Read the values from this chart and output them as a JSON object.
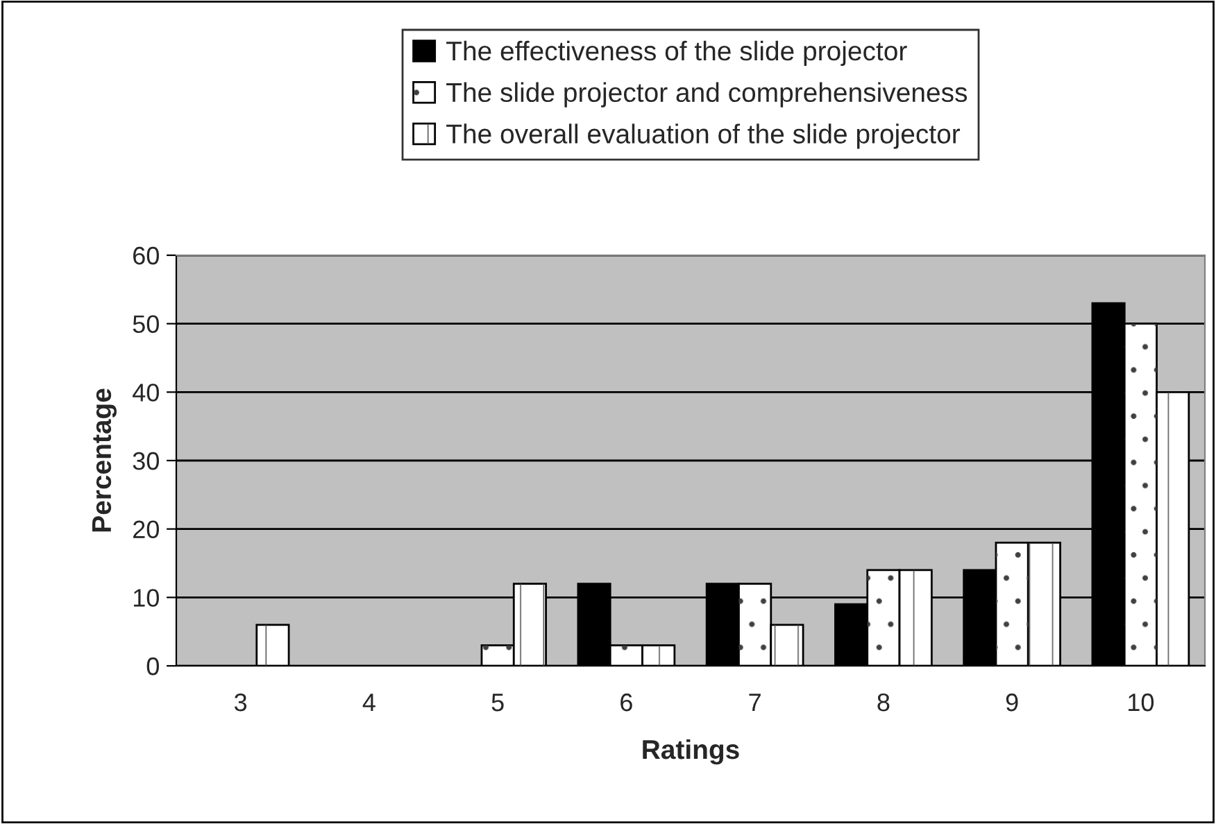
{
  "chart_data": {
    "type": "bar",
    "xlabel": "Ratings",
    "ylabel": "Percentage",
    "categories": [
      "3",
      "4",
      "5",
      "6",
      "7",
      "8",
      "9",
      "10"
    ],
    "series": [
      {
        "name": "The effectiveness of the slide projector",
        "color": "#000000",
        "values": [
          0,
          0,
          0,
          12,
          12,
          9,
          14,
          53
        ]
      },
      {
        "name": "The slide projector and comprehensiveness",
        "color": "#ffffff",
        "values": [
          0,
          0,
          3,
          3,
          12,
          14,
          18,
          50
        ]
      },
      {
        "name": "The overall evaluation of the slide projector",
        "color": "#ffffff",
        "values": [
          6,
          0,
          12,
          3,
          6,
          14,
          18,
          40
        ]
      }
    ],
    "ylim": [
      0,
      60
    ],
    "yticks": [
      0,
      10,
      20,
      30,
      40,
      50,
      60
    ],
    "grid": "y",
    "legend": "top"
  }
}
